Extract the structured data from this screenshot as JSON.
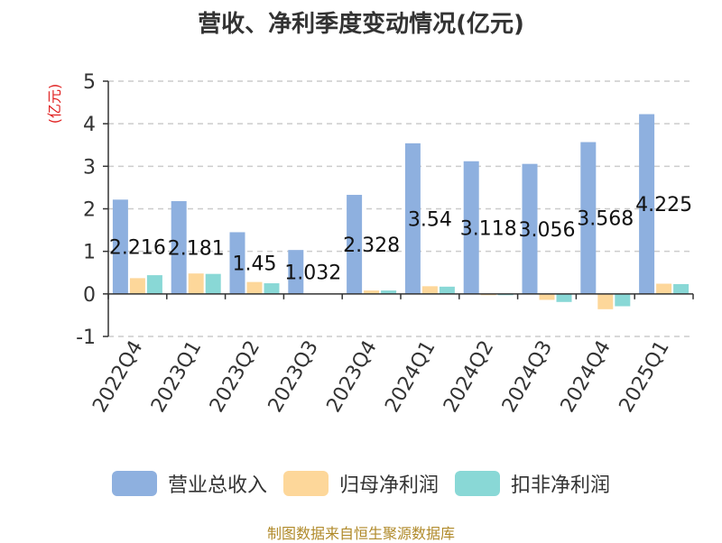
{
  "chart_data": {
    "type": "bar",
    "title": "营收、净利季度变动情况(亿元)",
    "ylabel": "(亿元)",
    "categories": [
      "2022Q4",
      "2023Q1",
      "2023Q2",
      "2023Q3",
      "2023Q4",
      "2024Q1",
      "2024Q2",
      "2024Q3",
      "2024Q4",
      "2025Q1"
    ],
    "ylim": [
      -1,
      5
    ],
    "yticks": [
      5,
      4,
      3,
      2,
      1,
      0,
      -1
    ],
    "grid": true,
    "legend_position": "bottom",
    "series": [
      {
        "name": "营业总收入",
        "color": "#8eb0df",
        "values": [
          2.216,
          2.181,
          1.45,
          1.032,
          2.328,
          3.54,
          3.118,
          3.056,
          3.568,
          4.225
        ],
        "labels": [
          "2.216",
          "2.181",
          "1.45",
          "1.032",
          "2.328",
          "3.54",
          "3.118",
          "3.056",
          "3.568",
          "4.225"
        ]
      },
      {
        "name": "归母净利润",
        "color": "#fdd79a",
        "values": [
          0.37,
          0.48,
          0.28,
          0.0,
          0.08,
          0.18,
          -0.03,
          -0.14,
          -0.36,
          0.24
        ]
      },
      {
        "name": "扣非净利润",
        "color": "#89d8d6",
        "values": [
          0.44,
          0.47,
          0.25,
          0.0,
          0.08,
          0.17,
          -0.03,
          -0.19,
          -0.29,
          0.23
        ]
      }
    ]
  },
  "source_note": "制图数据来自恒生聚源数据库"
}
